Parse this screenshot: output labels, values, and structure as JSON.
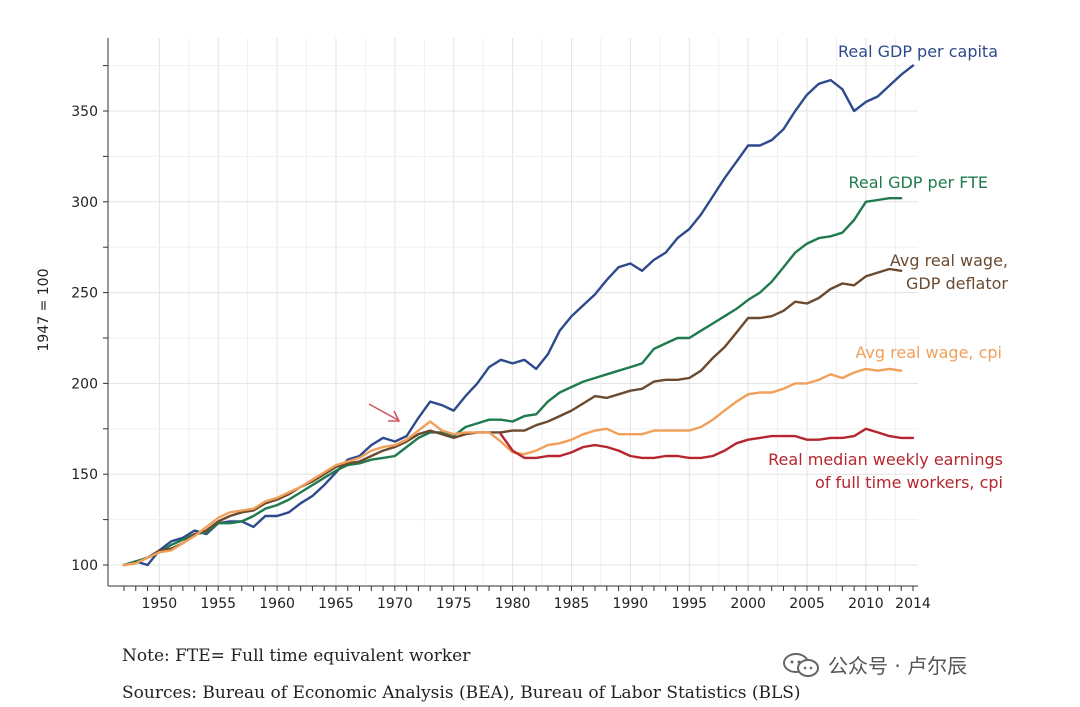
{
  "chart_data": {
    "type": "line",
    "title": "",
    "xlabel": "",
    "ylabel": "1947 = 100",
    "xlim": [
      1947,
      2014
    ],
    "ylim": [
      95,
      380
    ],
    "xticks": [
      1950,
      1955,
      1960,
      1965,
      1970,
      1975,
      1980,
      1985,
      1990,
      1995,
      2000,
      2005,
      2010,
      2014
    ],
    "yticks": [
      100,
      150,
      200,
      250,
      300,
      350
    ],
    "grid": true,
    "annotation": "arrow pointing to ~1971",
    "series": [
      {
        "name": "Real GDP per capita",
        "label_lines": [
          "Real GDP per capita"
        ],
        "color": "#2e4a8c",
        "x": [
          1947,
          1948,
          1949,
          1950,
          1951,
          1952,
          1953,
          1954,
          1955,
          1956,
          1957,
          1958,
          1959,
          1960,
          1961,
          1962,
          1963,
          1964,
          1965,
          1966,
          1967,
          1968,
          1969,
          1970,
          1971,
          1972,
          1973,
          1974,
          1975,
          1976,
          1977,
          1978,
          1979,
          1980,
          1981,
          1982,
          1983,
          1984,
          1985,
          1986,
          1987,
          1988,
          1989,
          1990,
          1991,
          1992,
          1993,
          1994,
          1995,
          1996,
          1997,
          1998,
          1999,
          2000,
          2001,
          2002,
          2003,
          2004,
          2005,
          2006,
          2007,
          2008,
          2009,
          2010,
          2011,
          2012,
          2013,
          2014
        ],
        "y": [
          100,
          102,
          100,
          108,
          113,
          115,
          119,
          117,
          123,
          124,
          124,
          121,
          127,
          127,
          129,
          134,
          138,
          144,
          151,
          158,
          160,
          166,
          170,
          168,
          171,
          181,
          190,
          188,
          185,
          193,
          200,
          209,
          213,
          211,
          213,
          208,
          216,
          229,
          237,
          243,
          249,
          257,
          264,
          266,
          262,
          268,
          272,
          280,
          285,
          293,
          303,
          313,
          322,
          331,
          331,
          334,
          340,
          350,
          359,
          365,
          367,
          362,
          350,
          355,
          358,
          364,
          370,
          375
        ]
      },
      {
        "name": "Real GDP per FTE",
        "label_lines": [
          "Real GDP per FTE"
        ],
        "color": "#1f7a4d",
        "x": [
          1947,
          1948,
          1949,
          1950,
          1951,
          1952,
          1953,
          1954,
          1955,
          1956,
          1957,
          1958,
          1959,
          1960,
          1961,
          1962,
          1963,
          1964,
          1965,
          1966,
          1967,
          1968,
          1969,
          1970,
          1971,
          1972,
          1973,
          1974,
          1975,
          1976,
          1977,
          1978,
          1979,
          1980,
          1981,
          1982,
          1983,
          1984,
          1985,
          1986,
          1987,
          1988,
          1989,
          1990,
          1991,
          1992,
          1993,
          1994,
          1995,
          1996,
          1997,
          1998,
          1999,
          2000,
          2001,
          2002,
          2003,
          2004,
          2005,
          2006,
          2007,
          2008,
          2009,
          2010,
          2011,
          2012,
          2013
        ],
        "y": [
          100,
          102,
          104,
          107,
          111,
          114,
          117,
          118,
          123,
          123,
          124,
          127,
          131,
          133,
          136,
          140,
          144,
          148,
          152,
          155,
          156,
          158,
          159,
          160,
          165,
          170,
          173,
          173,
          171,
          176,
          178,
          180,
          180,
          179,
          182,
          183,
          190,
          195,
          198,
          201,
          203,
          205,
          207,
          209,
          211,
          219,
          222,
          225,
          225,
          229,
          233,
          237,
          241,
          246,
          250,
          256,
          264,
          272,
          277,
          280,
          281,
          283,
          290,
          300,
          301,
          302,
          302
        ]
      },
      {
        "name": "Avg real wage, GDP deflator",
        "label_lines": [
          "Avg real wage,",
          "GDP deflator"
        ],
        "color": "#6b4a2f",
        "x": [
          1947,
          1948,
          1949,
          1950,
          1951,
          1952,
          1953,
          1954,
          1955,
          1956,
          1957,
          1958,
          1959,
          1960,
          1961,
          1962,
          1963,
          1964,
          1965,
          1966,
          1967,
          1968,
          1969,
          1970,
          1971,
          1972,
          1973,
          1974,
          1975,
          1976,
          1977,
          1978,
          1979,
          1980,
          1981,
          1982,
          1983,
          1984,
          1985,
          1986,
          1987,
          1988,
          1989,
          1990,
          1991,
          1992,
          1993,
          1994,
          1995,
          1996,
          1997,
          1998,
          1999,
          2000,
          2001,
          2002,
          2003,
          2004,
          2005,
          2006,
          2007,
          2008,
          2009,
          2010,
          2011,
          2012,
          2013
        ],
        "y": [
          100,
          101,
          104,
          108,
          109,
          112,
          117,
          119,
          124,
          127,
          129,
          130,
          134,
          136,
          139,
          143,
          146,
          150,
          154,
          156,
          157,
          160,
          163,
          165,
          168,
          172,
          174,
          172,
          170,
          172,
          173,
          173,
          173,
          174,
          174,
          177,
          179,
          182,
          185,
          189,
          193,
          192,
          194,
          196,
          197,
          201,
          202,
          202,
          203,
          207,
          214,
          220,
          228,
          236,
          236,
          237,
          240,
          245,
          244,
          247,
          252,
          255,
          254,
          259,
          261,
          263,
          262
        ]
      },
      {
        "name": "Avg real wage, cpi",
        "label_lines": [
          "Avg real wage, cpi"
        ],
        "color": "#f0a05a",
        "x": [
          1947,
          1948,
          1949,
          1950,
          1951,
          1952,
          1953,
          1954,
          1955,
          1956,
          1957,
          1958,
          1959,
          1960,
          1961,
          1962,
          1963,
          1964,
          1965,
          1966,
          1967,
          1968,
          1969,
          1970,
          1971,
          1972,
          1973,
          1974,
          1975,
          1976,
          1977,
          1978,
          1979,
          1980,
          1981,
          1982,
          1983,
          1984,
          1985,
          1986,
          1987,
          1988,
          1989,
          1990,
          1991,
          1992,
          1993,
          1994,
          1995,
          1996,
          1997,
          1998,
          1999,
          2000,
          2001,
          2002,
          2003,
          2004,
          2005,
          2006,
          2007,
          2008,
          2009,
          2010,
          2011,
          2012,
          2013
        ],
        "y": [
          100,
          101,
          104,
          107,
          108,
          112,
          116,
          121,
          126,
          129,
          130,
          131,
          135,
          137,
          140,
          143,
          147,
          151,
          155,
          157,
          159,
          163,
          165,
          166,
          169,
          174,
          179,
          174,
          172,
          173,
          173,
          173,
          168,
          162,
          161,
          163,
          166,
          167,
          169,
          172,
          174,
          175,
          172,
          172,
          172,
          174,
          174,
          174,
          174,
          176,
          180,
          185,
          190,
          194,
          195,
          195,
          197,
          200,
          200,
          202,
          205,
          203,
          206,
          208,
          207,
          208,
          207
        ]
      },
      {
        "name": "Real median weekly earnings of full time workers, cpi",
        "label_lines": [
          "Real median weekly earnings",
          "of full time workers, cpi"
        ],
        "color": "#b5262e",
        "x": [
          1979,
          1980,
          1981,
          1982,
          1983,
          1984,
          1985,
          1986,
          1987,
          1988,
          1989,
          1990,
          1991,
          1992,
          1993,
          1994,
          1995,
          1996,
          1997,
          1998,
          1999,
          2000,
          2001,
          2002,
          2003,
          2004,
          2005,
          2006,
          2007,
          2008,
          2009,
          2010,
          2011,
          2012,
          2013,
          2014
        ],
        "y": [
          172,
          163,
          159,
          159,
          160,
          160,
          162,
          165,
          166,
          165,
          163,
          160,
          159,
          159,
          160,
          160,
          159,
          159,
          160,
          163,
          167,
          169,
          170,
          171,
          171,
          171,
          169,
          169,
          170,
          170,
          171,
          175,
          173,
          171,
          170,
          170
        ]
      }
    ]
  },
  "notes": {
    "note": "Note: FTE= Full time equivalent worker",
    "sources": "Sources: Bureau of Economic Analysis (BEA), Bureau of Labor Statistics (BLS)"
  },
  "watermark": {
    "text": "公众号 · 卢尔辰",
    "icon": "wechat-icon"
  }
}
